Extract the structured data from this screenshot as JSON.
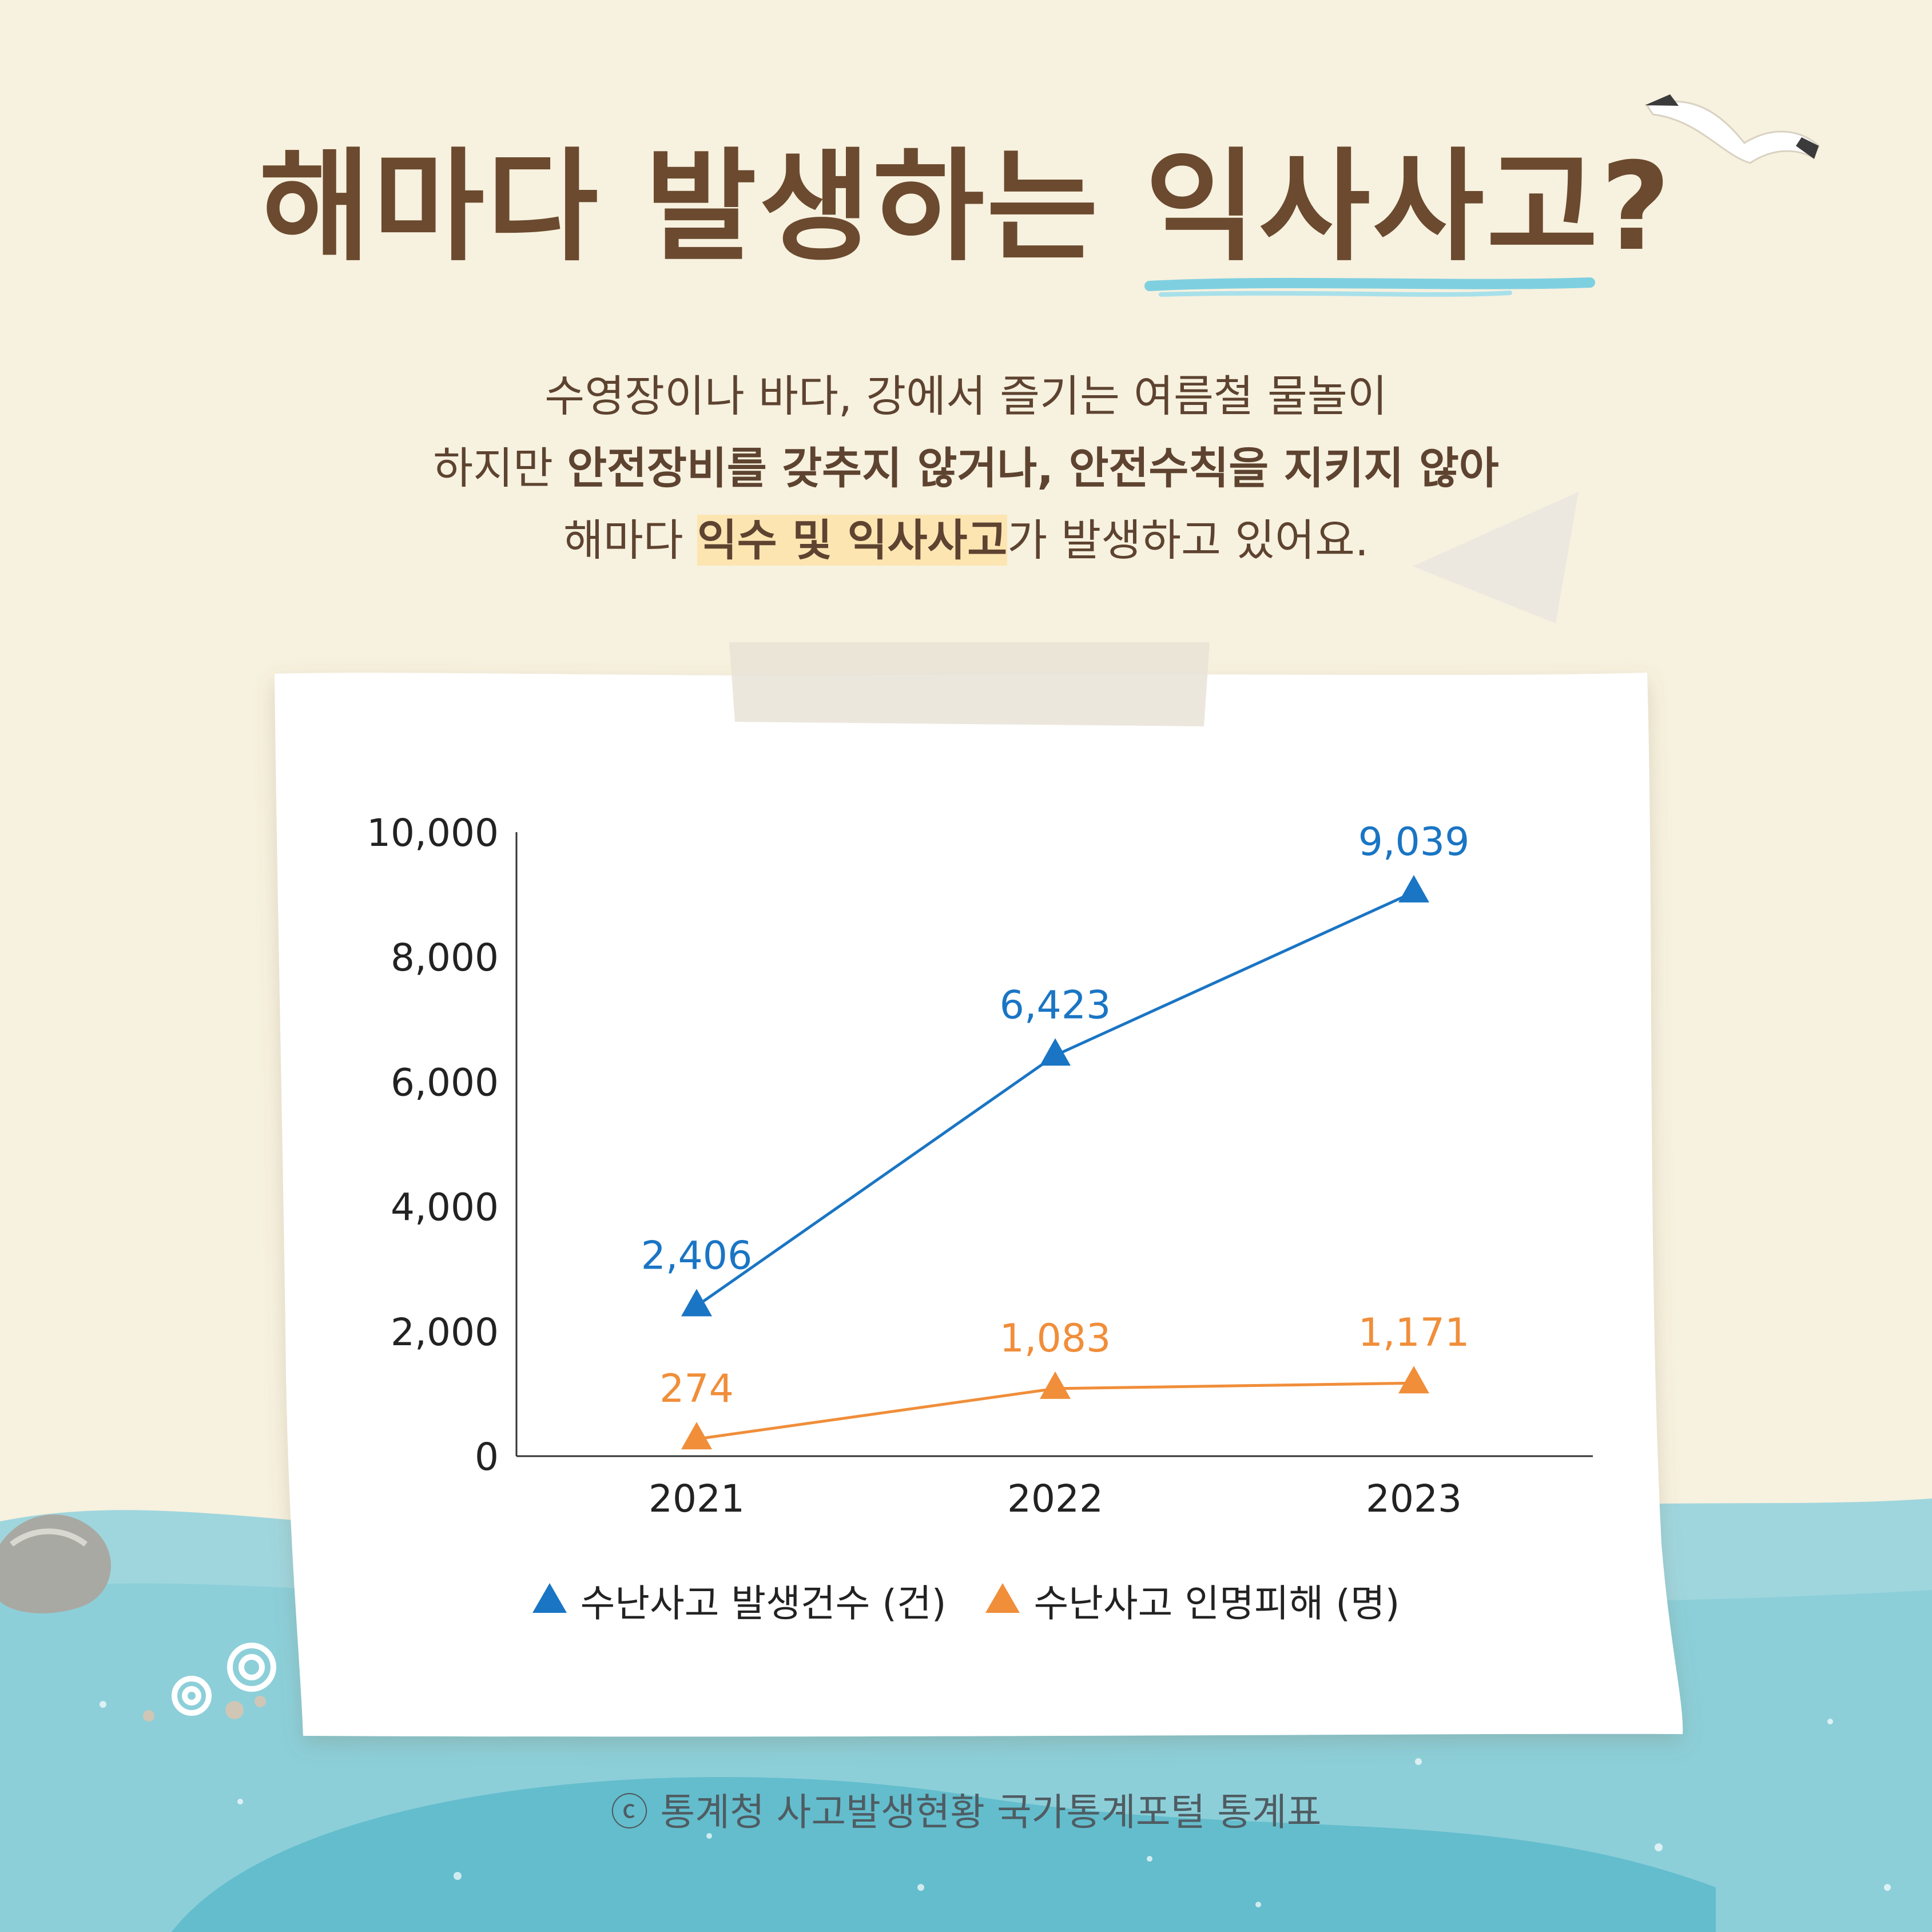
{
  "title": {
    "pre": "해마다 발생하는 ",
    "highlight": "익사사고",
    "post": "?"
  },
  "subtitle": {
    "line1": "수영장이나 바다, 강에서 즐기는 여름철 물놀이",
    "line2_a": "하지만 ",
    "line2_b": "안전장비를 갖추지 않거나, 안전수칙을 지키지 않아",
    "line3_a": "해마다 ",
    "line3_b": "익수 및 익사사고",
    "line3_c": "가 발생하고 있어요."
  },
  "chart_data": {
    "type": "line",
    "x": [
      "2021",
      "2022",
      "2023"
    ],
    "series": [
      {
        "name": "수난사고 발생건수 (건)",
        "values": [
          2406,
          6423,
          9039
        ],
        "labels": [
          "2,406",
          "6,423",
          "9,039"
        ],
        "color": "#1a75c4",
        "marker": "triangle"
      },
      {
        "name": "수난사고 인명피해 (명)",
        "values": [
          274,
          1083,
          1171
        ],
        "labels": [
          "274",
          "1,083",
          "1,171"
        ],
        "color": "#f08e3a",
        "marker": "triangle"
      }
    ],
    "y_ticks": [
      "0",
      "2,000",
      "4,000",
      "6,000",
      "8,000",
      "10,000"
    ],
    "y_tick_values": [
      0,
      2000,
      4000,
      6000,
      8000,
      10000
    ],
    "ylim": [
      0,
      10000
    ],
    "grid": false,
    "legend_position": "bottom"
  },
  "source": "ⓒ 통계청 사고발생현황 국가통계포털 통계표",
  "colors": {
    "background": "#f7f1df",
    "title": "#6b4a2f",
    "sea": "#8fd2dc",
    "highlight": "#fde5b2"
  },
  "icons": [
    "seagull-icon",
    "seashell-icon",
    "rock-icon"
  ]
}
